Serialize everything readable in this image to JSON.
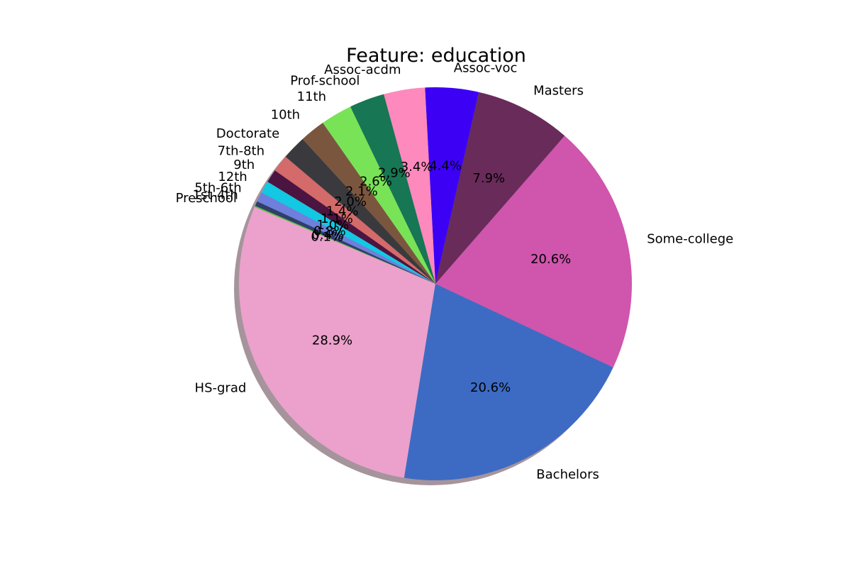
{
  "chart_data": {
    "type": "pie",
    "title": "Feature: education",
    "slices": [
      {
        "label": "HS-grad",
        "value": 28.9,
        "pct_label": "28.9%",
        "color": "#eba1cb"
      },
      {
        "label": "Bachelors",
        "value": 20.6,
        "pct_label": "20.6%",
        "color": "#3d6bc4"
      },
      {
        "label": "Some-college",
        "value": 20.6,
        "pct_label": "20.6%",
        "color": "#d055ad"
      },
      {
        "label": "Masters",
        "value": 7.9,
        "pct_label": "7.9%",
        "color": "#692b5a"
      },
      {
        "label": "Assoc-voc",
        "value": 4.4,
        "pct_label": "4.4%",
        "color": "#3c00f5"
      },
      {
        "label": "Assoc-acdm",
        "value": 3.4,
        "pct_label": "3.4%",
        "color": "#fe89bd"
      },
      {
        "label": "Prof-school",
        "value": 2.9,
        "pct_label": "2.9%",
        "color": "#177653"
      },
      {
        "label": "11th",
        "value": 2.6,
        "pct_label": "2.6%",
        "color": "#79e357"
      },
      {
        "label": "10th",
        "value": 2.1,
        "pct_label": "2.1%",
        "color": "#7b563e"
      },
      {
        "label": "Doctorate",
        "value": 2.0,
        "pct_label": "2.0%",
        "color": "#3a3a3e"
      },
      {
        "label": "7th-8th",
        "value": 1.4,
        "pct_label": "1.4%",
        "color": "#d46a6a"
      },
      {
        "label": "9th",
        "value": 1.1,
        "pct_label": "1.1%",
        "color": "#4c1440"
      },
      {
        "label": "12th",
        "value": 1.0,
        "pct_label": "1.0%",
        "color": "#12c8e2"
      },
      {
        "label": "5th-6th",
        "value": 0.8,
        "pct_label": "0.8%",
        "color": "#6e7fdc"
      },
      {
        "label": "1st-4th",
        "value": 0.4,
        "pct_label": "0.4%",
        "color": "#2f3f6a"
      },
      {
        "label": "Preschool",
        "value": 0.1,
        "pct_label": "0.1%",
        "color": "#55c23a"
      }
    ]
  }
}
